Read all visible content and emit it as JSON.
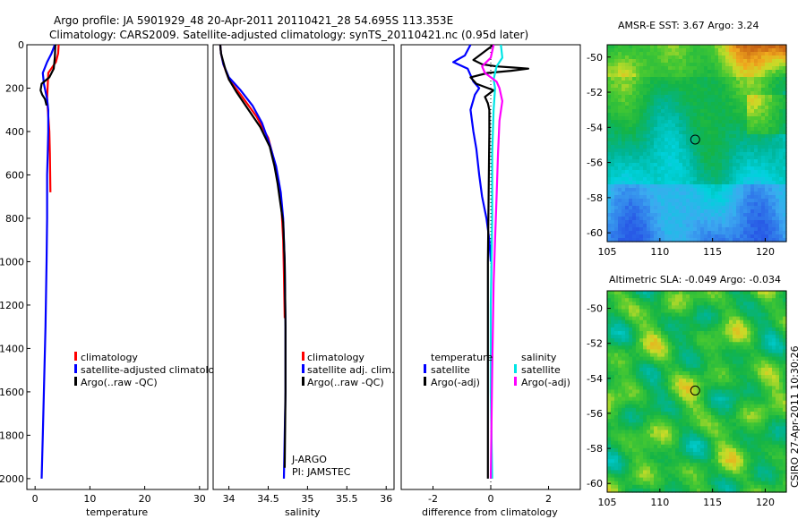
{
  "title_line1": "Argo profile: JA 5901929_48 20-Apr-2011 20110421_28 54.695S 113.353E",
  "title_line2": "Climatology: CARS2009. Satellite-adjusted climatology: synTS_20110421.nc (0.95d later)",
  "side_label": "CSIRO 27-Apr-2011 10:30:26",
  "colors": {
    "climatology": "#ff0000",
    "satellite": "#0000ff",
    "argo": "#000000",
    "sat_sal": "#00e5e5",
    "argo_sal": "#ff00ff"
  },
  "chart_data": [
    {
      "type": "line",
      "id": "temperature",
      "xlabel": "temperature",
      "ylim": [
        2050,
        0
      ],
      "xlim": [
        -1.5,
        31.5
      ],
      "xticks": [
        "0",
        "10",
        "20",
        "30"
      ],
      "xtick_values": [
        0,
        10,
        20,
        30
      ],
      "yticks": [
        "0",
        "200",
        "400",
        "600",
        "800",
        "1000",
        "1200",
        "1400",
        "1600",
        "1800",
        "2000"
      ],
      "legend": [
        "climatology",
        "satellite-adjusted climatology",
        "Argo(..raw -QC)"
      ],
      "series": [
        {
          "name": "climatology",
          "color": "#ff0000",
          "x": [
            4.3,
            4.2,
            3.8,
            2.4,
            2.2,
            2.6,
            2.7,
            2.8
          ],
          "y": [
            0,
            40,
            80,
            130,
            250,
            400,
            500,
            680
          ]
        },
        {
          "name": "satellite-adjusted climatology",
          "color": "#0000ff",
          "x": [
            3.6,
            3.0,
            2.2,
            1.4,
            1.6,
            2.2,
            2.4,
            2.4,
            2.3,
            2.2,
            2.2,
            2.1,
            1.9,
            1.6,
            1.4,
            1.2
          ],
          "y": [
            0,
            40,
            80,
            130,
            180,
            250,
            300,
            400,
            500,
            600,
            800,
            1000,
            1300,
            1600,
            1800,
            2000
          ]
        },
        {
          "name": "Argo(..raw -QC)",
          "color": "#000000",
          "x": [
            3.7,
            3.6,
            3.4,
            2.6,
            1.2,
            1.0,
            1.3,
            1.8,
            2.1
          ],
          "y": [
            0,
            60,
            110,
            150,
            180,
            210,
            230,
            250,
            280
          ]
        }
      ]
    },
    {
      "type": "line",
      "id": "salinity",
      "xlabel": "salinity",
      "ylim": [
        2050,
        0
      ],
      "xlim": [
        33.8,
        36.1
      ],
      "xticks": [
        "34",
        "34.5",
        "35",
        "35.5",
        "36"
      ],
      "xtick_values": [
        34,
        34.5,
        35,
        35.5,
        36
      ],
      "legend": [
        "climatology",
        "satellite adj. clim.",
        "Argo(..raw -QC)"
      ],
      "annotation": [
        "J-ARGO",
        "PI: JAMSTEC"
      ],
      "series": [
        {
          "name": "climatology",
          "color": "#ff0000",
          "x": [
            33.89,
            33.9,
            33.93,
            34.0,
            34.15,
            34.35,
            34.5,
            34.58,
            34.63,
            34.67,
            34.69,
            34.7,
            34.71
          ],
          "y": [
            0,
            40,
            90,
            160,
            230,
            330,
            430,
            540,
            650,
            760,
            900,
            1050,
            1260
          ]
        },
        {
          "name": "satellite adj. clim.",
          "color": "#0000ff",
          "x": [
            33.89,
            33.9,
            33.93,
            34.0,
            34.15,
            34.3,
            34.42,
            34.52,
            34.6,
            34.66,
            34.69,
            34.71,
            34.72,
            34.72,
            34.71,
            34.7
          ],
          "y": [
            0,
            40,
            90,
            150,
            210,
            280,
            360,
            460,
            560,
            680,
            800,
            1000,
            1300,
            1600,
            1800,
            2000
          ]
        },
        {
          "name": "Argo(..raw -QC)",
          "color": "#000000",
          "x": [
            33.89,
            33.9,
            33.93,
            33.96,
            34.0,
            34.1,
            34.25,
            34.4,
            34.52,
            34.58,
            34.62,
            34.65,
            34.69,
            34.71,
            34.72,
            34.72,
            34.71
          ],
          "y": [
            0,
            40,
            80,
            120,
            160,
            220,
            300,
            380,
            470,
            560,
            640,
            720,
            820,
            1000,
            1300,
            1600,
            1950
          ]
        }
      ]
    },
    {
      "type": "line",
      "id": "difference",
      "xlabel": "difference from climatology",
      "ylim": [
        2050,
        0
      ],
      "xlim": [
        -3.1,
        3.1
      ],
      "xticks": [
        "-2",
        "0",
        "2"
      ],
      "xtick_values": [
        -2,
        0,
        2
      ],
      "legend_temperature": [
        "temperature",
        "satellite",
        "Argo(-adj)"
      ],
      "legend_salinity": [
        "salinity",
        "satellite",
        "Argo(-adj)"
      ],
      "series": [
        {
          "name": "temperature satellite",
          "color": "#0000ff",
          "x": [
            -0.7,
            -0.9,
            -1.3,
            -0.8,
            -0.6,
            -0.4,
            -0.55,
            -0.7,
            -0.6,
            -0.5,
            -0.4,
            -0.3,
            -0.15,
            -0.05,
            0
          ],
          "y": [
            0,
            50,
            80,
            110,
            170,
            200,
            230,
            300,
            400,
            480,
            600,
            700,
            800,
            900,
            1000
          ]
        },
        {
          "name": "temperature Argo(-adj)",
          "color": "#000000",
          "x": [
            0.1,
            -0.2,
            -0.6,
            -0.3,
            0.2,
            0.8,
            1.3,
            0.7,
            -0.1,
            -0.7,
            -0.5,
            0.1,
            -0.2,
            -0.1,
            -0.05,
            -0.05,
            -0.1,
            -0.1
          ],
          "y": [
            0,
            30,
            70,
            90,
            100,
            105,
            110,
            120,
            130,
            150,
            180,
            210,
            240,
            270,
            300,
            400,
            1000,
            2000
          ]
        },
        {
          "name": "salinity satellite",
          "color": "#00e5e5",
          "x": [
            0.35,
            0.4,
            0.2,
            0.15,
            0.1,
            0.15,
            0.1,
            0.05,
            0.05,
            0,
            0,
            0.05
          ],
          "y": [
            0,
            60,
            100,
            130,
            160,
            200,
            300,
            500,
            800,
            1200,
            1600,
            2000
          ]
        },
        {
          "name": "salinity Argo(-adj)",
          "color": "#ff00ff",
          "x": [
            0.1,
            0.0,
            -0.3,
            -0.2,
            0.2,
            0.3,
            0.4,
            0.3,
            0.25,
            0.2,
            0.15,
            0.1,
            0.05,
            0.0
          ],
          "y": [
            0,
            60,
            100,
            130,
            170,
            200,
            260,
            350,
            500,
            700,
            900,
            1100,
            1500,
            2000
          ]
        }
      ]
    },
    {
      "type": "heatmap",
      "id": "sst_map",
      "title": "AMSR-E SST: 3.67 Argo: 3.24",
      "xlim": [
        105,
        122
      ],
      "ylim": [
        -60.5,
        -49.3
      ],
      "xticks": [
        "105",
        "110",
        "115",
        "120"
      ],
      "xtick_values": [
        105,
        110,
        115,
        120
      ],
      "yticks": [
        "-50",
        "-52",
        "-54",
        "-56",
        "-58",
        "-60"
      ],
      "ytick_values": [
        -50,
        -52,
        -54,
        -56,
        -58,
        -60
      ],
      "marker": {
        "lon": 113.353,
        "lat": -54.695
      }
    },
    {
      "type": "heatmap",
      "id": "sla_map",
      "title": "Altimetric SLA: -0.049 Argo: -0.034",
      "xlim": [
        105,
        122
      ],
      "ylim": [
        -60.5,
        -49.0
      ],
      "xticks": [
        "105",
        "110",
        "115",
        "120"
      ],
      "xtick_values": [
        105,
        110,
        115,
        120
      ],
      "yticks": [
        "-50",
        "-52",
        "-54",
        "-56",
        "-58",
        "-60"
      ],
      "ytick_values": [
        -50,
        -52,
        -54,
        -56,
        -58,
        -60
      ],
      "marker": {
        "lon": 113.353,
        "lat": -54.695
      }
    }
  ]
}
